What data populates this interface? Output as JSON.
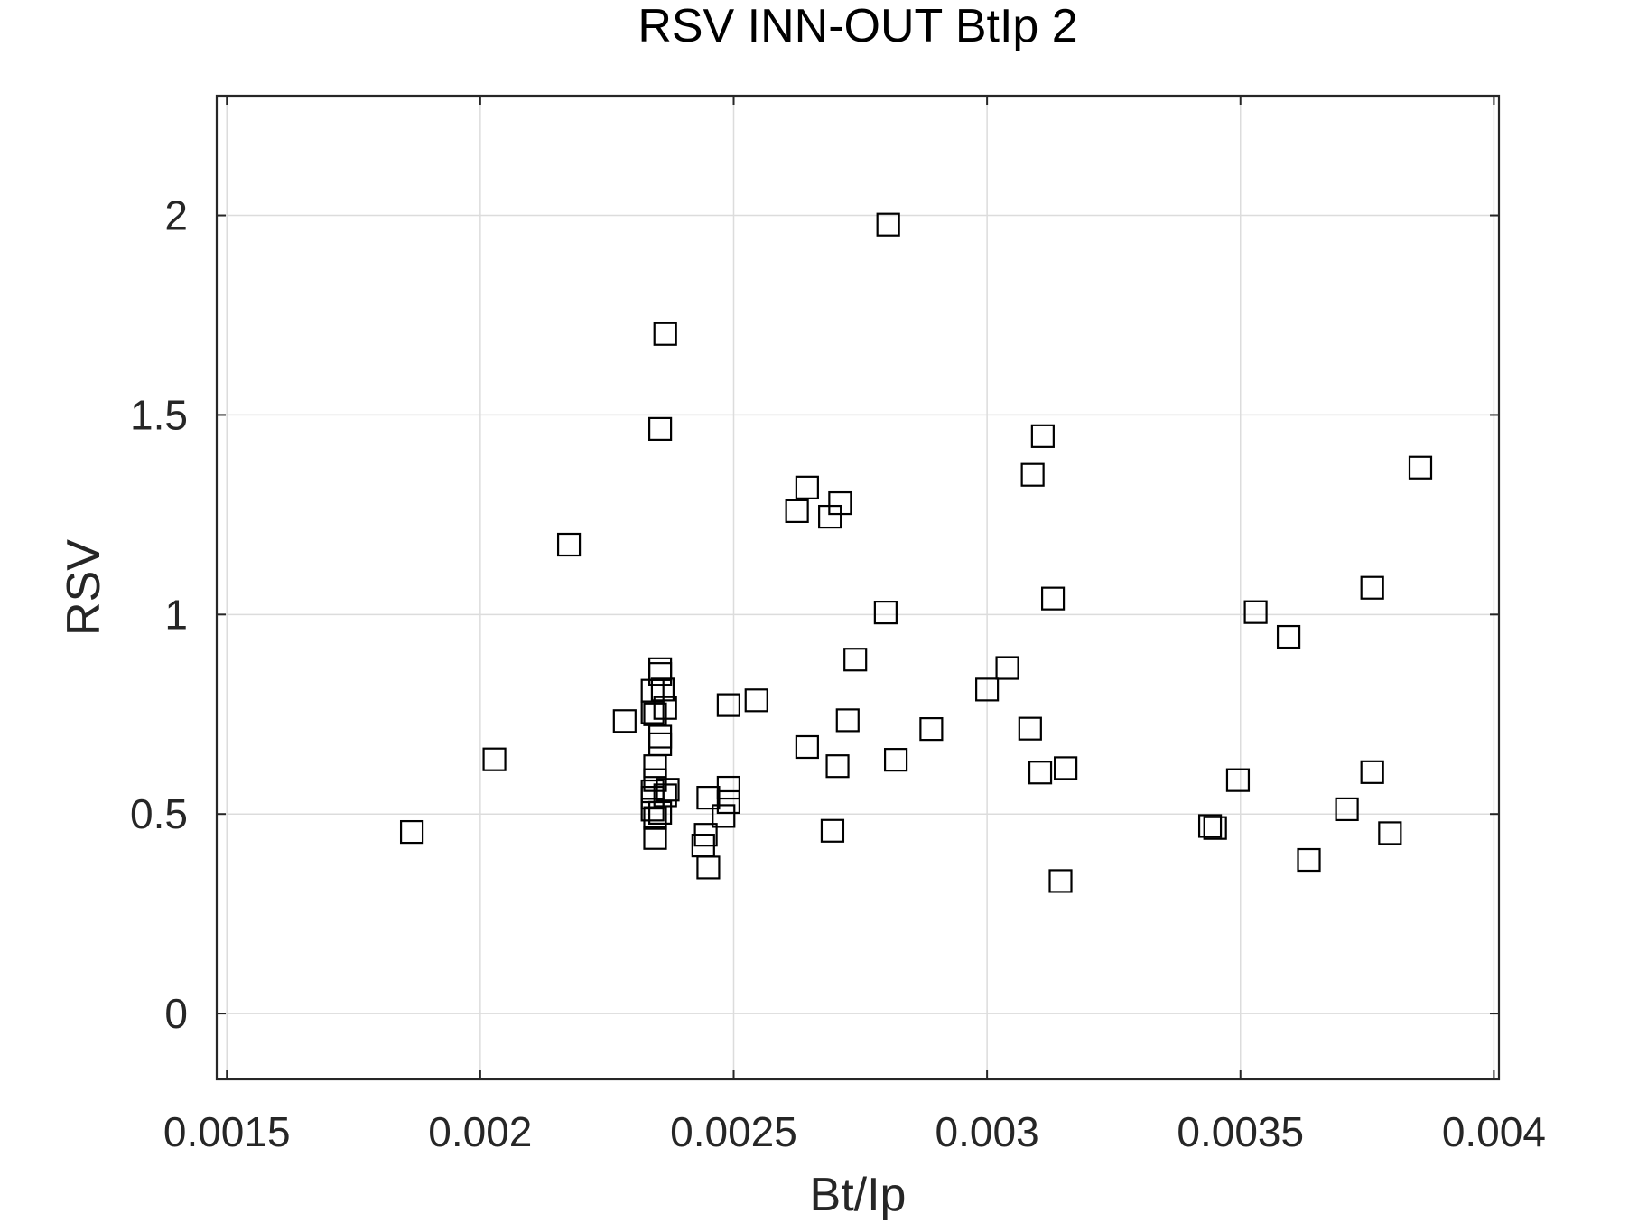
{
  "chart_data": {
    "type": "scatter",
    "title": "RSV INN-OUT BtIp 2",
    "xlabel": "Bt/Ip",
    "ylabel": "RSV",
    "xlim": [
      0.00148,
      0.00401
    ],
    "ylim": [
      -0.165,
      2.3
    ],
    "xticks": [
      0.0015,
      0.002,
      0.0025,
      0.003,
      0.0035,
      0.004
    ],
    "xtick_labels": [
      "0.0015",
      "0.002",
      "0.0025",
      "0.003",
      "0.0035",
      "0.004"
    ],
    "yticks": [
      0,
      0.5,
      1,
      1.5,
      2
    ],
    "ytick_labels": [
      "0",
      "0.5",
      "1",
      "1.5",
      "2"
    ],
    "grid": true,
    "marker": "square",
    "marker_color": "#000000",
    "points": [
      [
        0.001865,
        0.455
      ],
      [
        0.002028,
        0.637
      ],
      [
        0.002175,
        1.175
      ],
      [
        0.002285,
        0.733
      ],
      [
        0.002365,
        1.703
      ],
      [
        0.002355,
        1.465
      ],
      [
        0.002355,
        0.863
      ],
      [
        0.002355,
        0.851
      ],
      [
        0.00236,
        0.812
      ],
      [
        0.002365,
        0.766
      ],
      [
        0.00234,
        0.809
      ],
      [
        0.00234,
        0.755
      ],
      [
        0.002345,
        0.75
      ],
      [
        0.002355,
        0.694
      ],
      [
        0.002355,
        0.675
      ],
      [
        0.002345,
        0.62
      ],
      [
        0.002345,
        0.585
      ],
      [
        0.00234,
        0.557
      ],
      [
        0.00234,
        0.541
      ],
      [
        0.00234,
        0.511
      ],
      [
        0.002345,
        0.49
      ],
      [
        0.002345,
        0.44
      ],
      [
        0.002355,
        0.503
      ],
      [
        0.002365,
        0.547
      ],
      [
        0.00237,
        0.561
      ],
      [
        0.002445,
        0.448
      ],
      [
        0.00244,
        0.421
      ],
      [
        0.00245,
        0.366
      ],
      [
        0.00245,
        0.541
      ],
      [
        0.00248,
        0.495
      ],
      [
        0.00249,
        0.566
      ],
      [
        0.00249,
        0.53
      ],
      [
        0.00249,
        0.773
      ],
      [
        0.002545,
        0.785
      ],
      [
        0.002625,
        1.259
      ],
      [
        0.002645,
        1.318
      ],
      [
        0.00269,
        1.245
      ],
      [
        0.00271,
        1.279
      ],
      [
        0.002645,
        0.668
      ],
      [
        0.002705,
        0.62
      ],
      [
        0.002695,
        0.458
      ],
      [
        0.002725,
        0.735
      ],
      [
        0.00274,
        0.887
      ],
      [
        0.002805,
        1.977
      ],
      [
        0.0028,
        1.005
      ],
      [
        0.00282,
        0.636
      ],
      [
        0.00289,
        0.713
      ],
      [
        0.003,
        0.812
      ],
      [
        0.00304,
        0.866
      ],
      [
        0.00309,
        1.35
      ],
      [
        0.00311,
        1.447
      ],
      [
        0.00313,
        1.04
      ],
      [
        0.003085,
        0.714
      ],
      [
        0.003105,
        0.604
      ],
      [
        0.003155,
        0.615
      ],
      [
        0.003145,
        0.332
      ],
      [
        0.00344,
        0.47
      ],
      [
        0.00345,
        0.465
      ],
      [
        0.003495,
        0.585
      ],
      [
        0.00353,
        1.006
      ],
      [
        0.003595,
        0.944
      ],
      [
        0.003635,
        0.385
      ],
      [
        0.00371,
        0.512
      ],
      [
        0.00376,
        1.067
      ],
      [
        0.00376,
        0.605
      ],
      [
        0.003795,
        0.452
      ],
      [
        0.003855,
        1.368
      ]
    ]
  }
}
